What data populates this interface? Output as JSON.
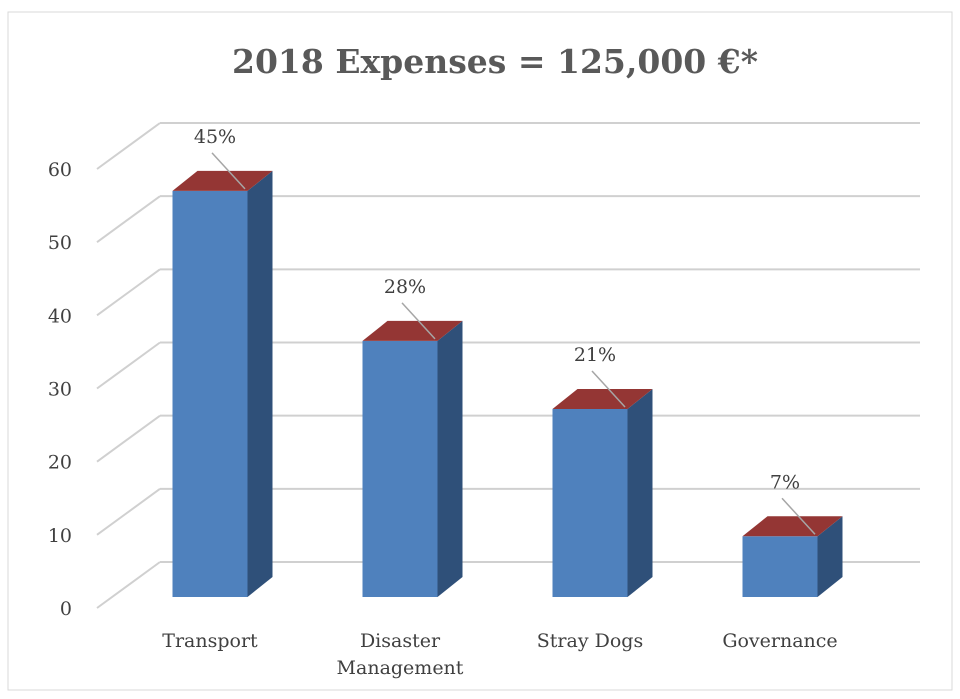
{
  "chart_data": {
    "type": "bar3d",
    "title": "2018 Expenses = 125,000 €*",
    "categories": [
      "Transport",
      "Disaster Management",
      "Stray Dogs",
      "Governance"
    ],
    "values": [
      55.5,
      35,
      25.7,
      8.3
    ],
    "percent_labels": [
      "45%",
      "28%",
      "21%",
      "7%"
    ],
    "color": "#4f81bd",
    "side_color": "#2f5079",
    "top_color": "#943634",
    "ylim": [
      0,
      60
    ],
    "yticks": [
      0,
      10,
      20,
      30,
      40,
      50,
      60
    ],
    "grid": true
  }
}
